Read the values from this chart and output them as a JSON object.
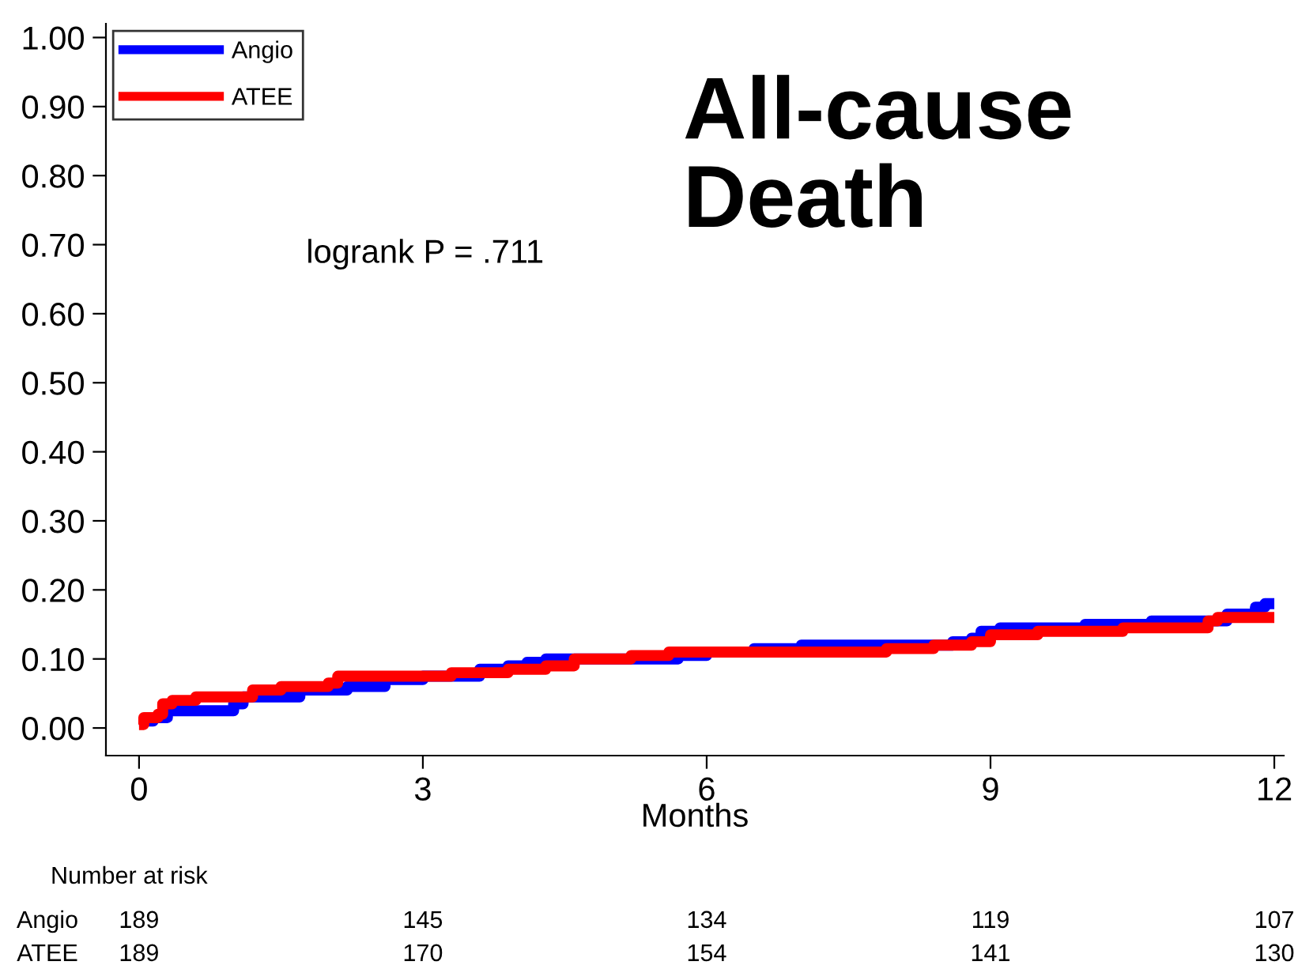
{
  "chart_data": {
    "type": "step",
    "title": "All-cause\nDeath",
    "xlabel": "Months",
    "legend": "top left",
    "grid": false,
    "marker": "none",
    "line_style": "solid",
    "xlim": [
      -0.35,
      12.1
    ],
    "xticks": [
      0,
      3,
      6,
      9,
      12
    ],
    "ylim": [
      -0.04,
      1.02
    ],
    "yticks": [
      {
        "value": 0,
        "label": "0.00"
      },
      {
        "value": 0.1,
        "label": "0.10"
      },
      {
        "value": 0.2,
        "label": "0.20"
      },
      {
        "value": 0.3,
        "label": "0.30"
      },
      {
        "value": 0.4,
        "label": "0.40"
      },
      {
        "value": 0.5,
        "label": "0.50"
      },
      {
        "value": 0.6,
        "label": "0.60"
      },
      {
        "value": 0.7,
        "label": "0.70"
      },
      {
        "value": 0.8,
        "label": "0.80"
      },
      {
        "value": 0.9,
        "label": "0.90"
      },
      {
        "value": 1,
        "label": "1.00"
      }
    ],
    "series": [
      {
        "name": "Angio",
        "color": "#0000ff",
        "x": [
          0,
          0.15,
          0.3,
          1.0,
          1.1,
          1.7,
          2.2,
          2.6,
          3.0,
          3.6,
          3.9,
          4.1,
          4.3,
          5.7,
          6.0,
          6.5,
          7.0,
          8.6,
          8.8,
          8.9,
          9.1,
          10.0,
          10.7,
          11.5,
          11.8,
          11.9,
          12
        ],
        "values": [
          0.01,
          0.015,
          0.025,
          0.035,
          0.045,
          0.055,
          0.06,
          0.07,
          0.075,
          0.085,
          0.09,
          0.095,
          0.1,
          0.105,
          0.11,
          0.115,
          0.12,
          0.125,
          0.13,
          0.14,
          0.145,
          0.15,
          0.155,
          0.165,
          0.175,
          0.18,
          0.18
        ]
      },
      {
        "name": "ATEE",
        "color": "#ff0000",
        "x": [
          0,
          0.05,
          0.2,
          0.25,
          0.35,
          0.6,
          1.2,
          1.5,
          2.0,
          2.1,
          3.3,
          3.9,
          4.3,
          4.6,
          5.2,
          5.6,
          7.9,
          8.4,
          8.8,
          9.0,
          9.5,
          10.4,
          11.3,
          11.4,
          12
        ],
        "values": [
          0.005,
          0.015,
          0.02,
          0.035,
          0.04,
          0.045,
          0.055,
          0.06,
          0.065,
          0.075,
          0.08,
          0.085,
          0.09,
          0.1,
          0.105,
          0.11,
          0.115,
          0.12,
          0.125,
          0.135,
          0.14,
          0.145,
          0.155,
          0.16,
          0.16
        ]
      }
    ],
    "annotations": [
      "logrank P = .711",
      "Number at risk",
      "Angio",
      "189",
      "145",
      "134",
      "119",
      "107",
      "ATEE",
      "189",
      "170",
      "154",
      "141",
      "130"
    ]
  }
}
